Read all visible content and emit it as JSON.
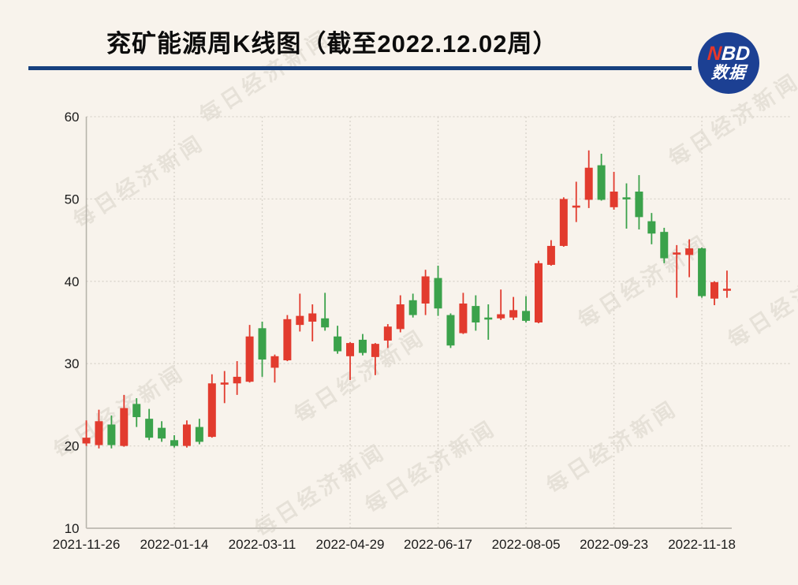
{
  "page": {
    "background": "#f8f3ec",
    "watermark_text": "每日经济新闻"
  },
  "header": {
    "title": "兖矿能源周K线图（截至2022.12.02周）",
    "underline_color": "#17407e",
    "logo": {
      "n": "N",
      "bd": "BD",
      "line2": "数据",
      "bg_color": "#1c4093",
      "n_color": "#e5372b",
      "text_color": "#ffffff"
    }
  },
  "chart_data": {
    "type": "candlestick",
    "title": "兖矿能源周K线图（截至2022.12.02周）",
    "period": "weekly",
    "up_color": "#e23b2e",
    "down_color": "#3ba24b",
    "grid": true,
    "grid_style": "dotted",
    "ylim": [
      10,
      60
    ],
    "y_ticks": [
      10,
      20,
      30,
      40,
      50,
      60
    ],
    "x_tick_labels": [
      "2021-11-26",
      "2022-01-14",
      "2022-03-11",
      "2022-04-29",
      "2022-06-17",
      "2022-08-05",
      "2022-09-23",
      "2022-11-18"
    ],
    "x_tick_indices": [
      0,
      7,
      14,
      21,
      28,
      35,
      42,
      49
    ],
    "candles": [
      {
        "date": "2021-11-26",
        "open": 20.3,
        "high": 23.1,
        "low": 20.0,
        "close": 21.0
      },
      {
        "date": "2021-12-03",
        "open": 20.1,
        "high": 24.4,
        "low": 19.7,
        "close": 23.0
      },
      {
        "date": "2021-12-10",
        "open": 22.6,
        "high": 23.7,
        "low": 19.7,
        "close": 20.1
      },
      {
        "date": "2021-12-17",
        "open": 20.0,
        "high": 26.2,
        "low": 19.9,
        "close": 24.6
      },
      {
        "date": "2021-12-24",
        "open": 25.1,
        "high": 25.8,
        "low": 22.3,
        "close": 23.5
      },
      {
        "date": "2021-12-31",
        "open": 23.3,
        "high": 24.5,
        "low": 20.7,
        "close": 21.0
      },
      {
        "date": "2022-01-07",
        "open": 22.2,
        "high": 23.0,
        "low": 20.5,
        "close": 20.9
      },
      {
        "date": "2022-01-14",
        "open": 20.7,
        "high": 21.3,
        "low": 19.8,
        "close": 20.0
      },
      {
        "date": "2022-01-21",
        "open": 20.0,
        "high": 23.1,
        "low": 19.8,
        "close": 22.6
      },
      {
        "date": "2022-01-28",
        "open": 22.3,
        "high": 23.3,
        "low": 20.2,
        "close": 20.5
      },
      {
        "date": "2022-02-11",
        "open": 21.1,
        "high": 28.7,
        "low": 21.0,
        "close": 27.6
      },
      {
        "date": "2022-02-18",
        "open": 27.5,
        "high": 29.1,
        "low": 25.2,
        "close": 27.7
      },
      {
        "date": "2022-02-25",
        "open": 27.6,
        "high": 30.3,
        "low": 26.2,
        "close": 28.4
      },
      {
        "date": "2022-03-04",
        "open": 27.8,
        "high": 34.7,
        "low": 27.7,
        "close": 33.3
      },
      {
        "date": "2022-03-11",
        "open": 34.3,
        "high": 35.1,
        "low": 28.4,
        "close": 30.5
      },
      {
        "date": "2022-03-18",
        "open": 29.5,
        "high": 31.1,
        "low": 27.7,
        "close": 30.9
      },
      {
        "date": "2022-03-25",
        "open": 30.4,
        "high": 35.9,
        "low": 30.3,
        "close": 35.4
      },
      {
        "date": "2022-04-01",
        "open": 34.7,
        "high": 38.5,
        "low": 33.9,
        "close": 35.8
      },
      {
        "date": "2022-04-08",
        "open": 35.1,
        "high": 37.2,
        "low": 32.7,
        "close": 36.1
      },
      {
        "date": "2022-04-15",
        "open": 35.5,
        "high": 38.6,
        "low": 34.0,
        "close": 34.4
      },
      {
        "date": "2022-04-22",
        "open": 33.3,
        "high": 34.6,
        "low": 31.2,
        "close": 31.5
      },
      {
        "date": "2022-04-29",
        "open": 30.9,
        "high": 32.6,
        "low": 28.0,
        "close": 32.5
      },
      {
        "date": "2022-05-06",
        "open": 32.9,
        "high": 33.6,
        "low": 31.0,
        "close": 31.3
      },
      {
        "date": "2022-05-13",
        "open": 30.8,
        "high": 32.5,
        "low": 28.6,
        "close": 32.4
      },
      {
        "date": "2022-05-20",
        "open": 32.8,
        "high": 34.8,
        "low": 31.9,
        "close": 34.5
      },
      {
        "date": "2022-05-27",
        "open": 34.2,
        "high": 38.3,
        "low": 33.8,
        "close": 37.2
      },
      {
        "date": "2022-06-02",
        "open": 37.7,
        "high": 38.5,
        "low": 35.6,
        "close": 35.9
      },
      {
        "date": "2022-06-10",
        "open": 37.3,
        "high": 41.4,
        "low": 35.9,
        "close": 40.6
      },
      {
        "date": "2022-06-17",
        "open": 40.4,
        "high": 41.9,
        "low": 35.8,
        "close": 36.7
      },
      {
        "date": "2022-06-24",
        "open": 35.9,
        "high": 36.1,
        "low": 31.9,
        "close": 32.2
      },
      {
        "date": "2022-07-01",
        "open": 33.7,
        "high": 38.6,
        "low": 33.6,
        "close": 37.3
      },
      {
        "date": "2022-07-08",
        "open": 37.0,
        "high": 38.3,
        "low": 34.0,
        "close": 35.0
      },
      {
        "date": "2022-07-15",
        "open": 35.6,
        "high": 37.2,
        "low": 32.9,
        "close": 35.4
      },
      {
        "date": "2022-07-22",
        "open": 35.5,
        "high": 39.0,
        "low": 35.3,
        "close": 36.0
      },
      {
        "date": "2022-07-29",
        "open": 35.6,
        "high": 38.1,
        "low": 35.3,
        "close": 36.5
      },
      {
        "date": "2022-08-05",
        "open": 36.4,
        "high": 38.2,
        "low": 35.0,
        "close": 35.2
      },
      {
        "date": "2022-08-12",
        "open": 35.0,
        "high": 42.5,
        "low": 34.9,
        "close": 42.2
      },
      {
        "date": "2022-08-19",
        "open": 42.0,
        "high": 45.0,
        "low": 41.9,
        "close": 44.3
      },
      {
        "date": "2022-08-26",
        "open": 44.3,
        "high": 50.2,
        "low": 44.2,
        "close": 50.0
      },
      {
        "date": "2022-09-02",
        "open": 49.0,
        "high": 52.1,
        "low": 47.2,
        "close": 49.2
      },
      {
        "date": "2022-09-09",
        "open": 49.9,
        "high": 55.9,
        "low": 48.9,
        "close": 53.8
      },
      {
        "date": "2022-09-16",
        "open": 54.1,
        "high": 55.5,
        "low": 49.8,
        "close": 49.9
      },
      {
        "date": "2022-09-23",
        "open": 49.0,
        "high": 53.3,
        "low": 48.7,
        "close": 50.9
      },
      {
        "date": "2022-09-30",
        "open": 50.2,
        "high": 51.9,
        "low": 46.4,
        "close": 50.0
      },
      {
        "date": "2022-10-14",
        "open": 50.9,
        "high": 52.9,
        "low": 46.3,
        "close": 47.8
      },
      {
        "date": "2022-10-21",
        "open": 47.3,
        "high": 48.3,
        "low": 44.5,
        "close": 45.8
      },
      {
        "date": "2022-10-28",
        "open": 46.0,
        "high": 46.5,
        "low": 42.2,
        "close": 42.8
      },
      {
        "date": "2022-11-04",
        "open": 43.3,
        "high": 44.4,
        "low": 38.0,
        "close": 43.5
      },
      {
        "date": "2022-11-11",
        "open": 43.2,
        "high": 45.1,
        "low": 40.5,
        "close": 44.0
      },
      {
        "date": "2022-11-18",
        "open": 44.0,
        "high": 44.1,
        "low": 38.0,
        "close": 38.2
      },
      {
        "date": "2022-11-25",
        "open": 37.9,
        "high": 40.0,
        "low": 37.1,
        "close": 39.9
      },
      {
        "date": "2022-12-02",
        "open": 38.9,
        "high": 41.3,
        "low": 38.0,
        "close": 39.1
      }
    ]
  }
}
